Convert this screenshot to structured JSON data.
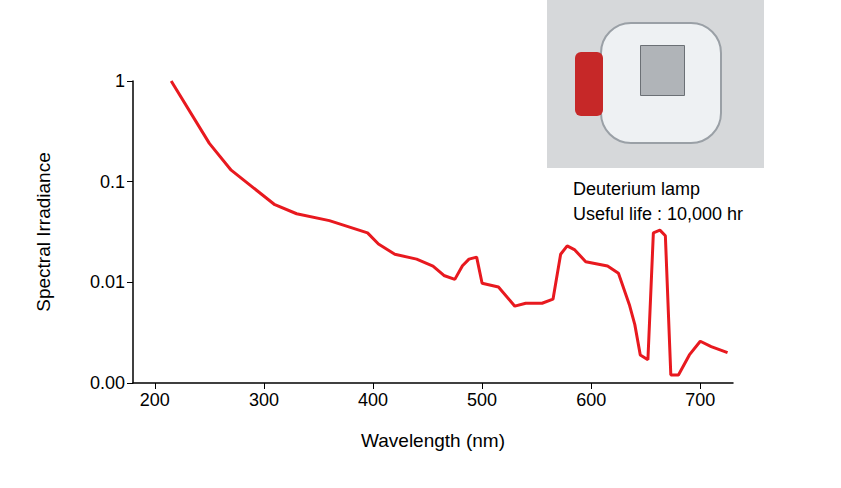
{
  "chart_data": {
    "type": "line",
    "x_label": "Wavelength (nm)",
    "y_label": "Spectral Irradiance",
    "x": [
      215,
      250,
      270,
      310,
      330,
      360,
      395,
      405,
      420,
      440,
      455,
      465,
      475,
      482,
      488,
      495,
      500,
      515,
      525,
      530,
      540,
      555,
      565,
      572,
      578,
      585,
      595,
      615,
      625,
      635,
      640,
      645,
      652,
      657,
      663,
      668,
      673,
      680,
      690,
      700,
      710,
      725
    ],
    "values": [
      1,
      0.24,
      0.13,
      0.059,
      0.048,
      0.041,
      0.031,
      0.024,
      0.019,
      0.017,
      0.0145,
      0.0117,
      0.0107,
      0.0146,
      0.017,
      0.0178,
      0.0098,
      0.009,
      0.0067,
      0.0058,
      0.0062,
      0.0062,
      0.0068,
      0.019,
      0.023,
      0.021,
      0.016,
      0.0145,
      0.0123,
      0.006,
      0.0038,
      0.0019,
      0.0017,
      0.031,
      0.033,
      0.029,
      0.0012,
      0.0012,
      0.0019,
      0.0026,
      0.0023,
      0.002
    ],
    "color": "#e8191f",
    "xlim": [
      180,
      730
    ],
    "xticks": [
      200,
      300,
      400,
      500,
      600,
      700
    ],
    "ylim": [
      0.001,
      1
    ],
    "yticks": [
      {
        "value": 0.001,
        "label": "0.00"
      },
      0.01,
      0.1,
      1
    ],
    "log": "y",
    "grid": false,
    "annotations": [
      "Deuterium lamp",
      "Useful life : 10,000 hr"
    ]
  }
}
